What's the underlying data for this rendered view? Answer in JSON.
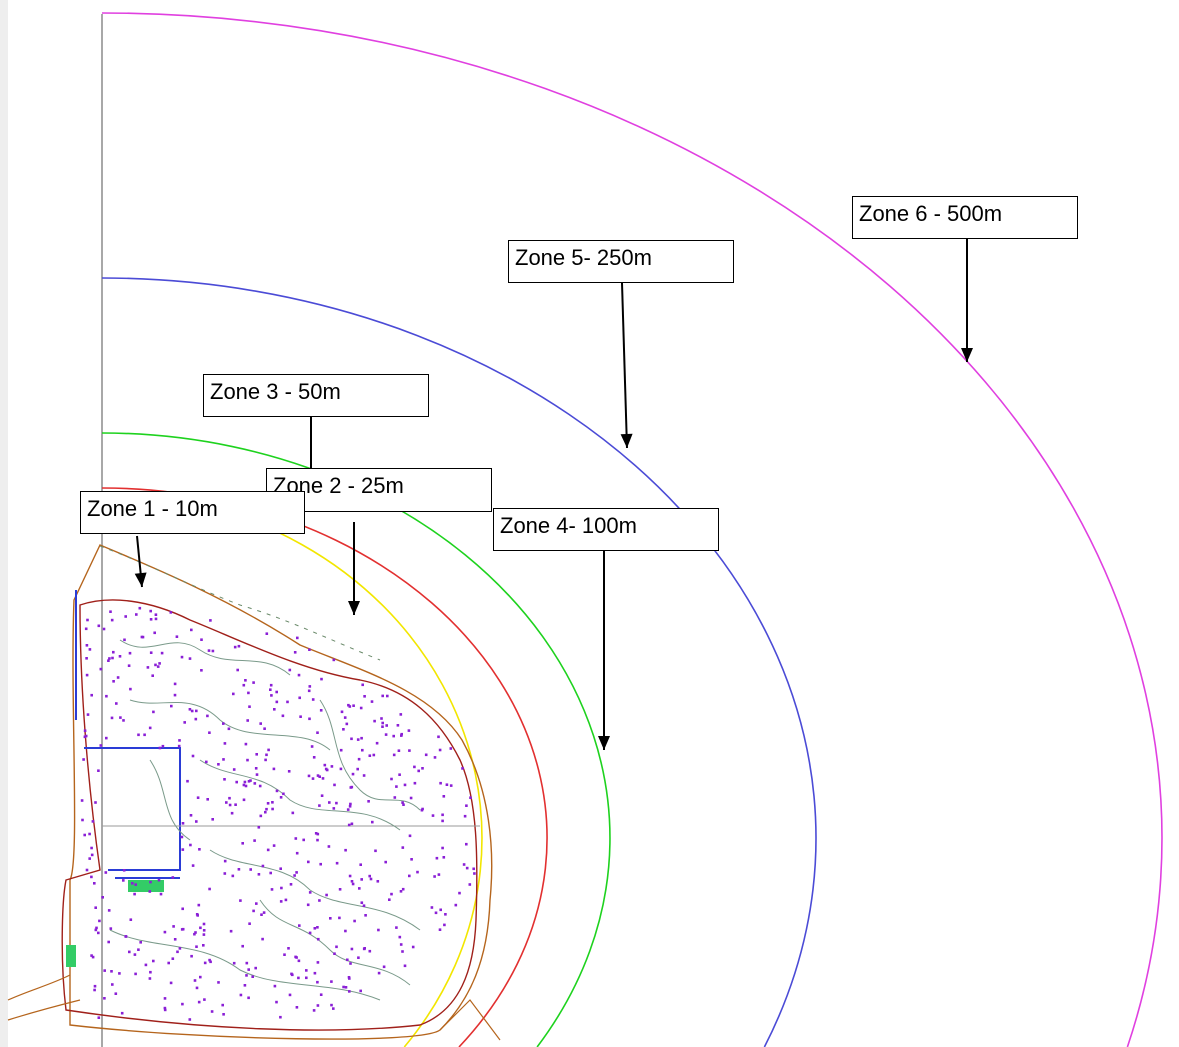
{
  "zones": [
    {
      "label": "Zone 1 - 10m",
      "color": "#b5651d",
      "radius_m": 10
    },
    {
      "label": "Zone 2 - 25m",
      "color": "#f2e600",
      "radius_m": 25
    },
    {
      "label": "Zone 3 - 50m",
      "color": "#e23030",
      "radius_m": 50
    },
    {
      "label": "Zone 4- 100m",
      "color": "#1ed21e",
      "radius_m": 100
    },
    {
      "label": "Zone 5- 250m",
      "color": "#4b4bd6",
      "radius_m": 250
    },
    {
      "label": "Zone 6 - 500m",
      "color": "#e040e0",
      "radius_m": 500
    }
  ],
  "site_colors": {
    "boundary": "#b5651d",
    "points": "#8a1fd6",
    "contours": "#7a9a8a",
    "blue_lines": "#2a3cd6",
    "green_feature": "#33cc66"
  }
}
